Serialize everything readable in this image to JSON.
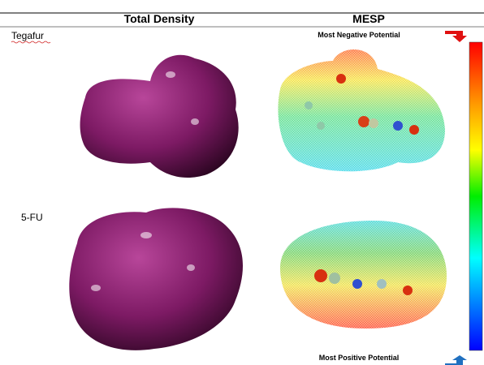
{
  "header": {
    "columns": [
      "Total Density",
      "MESP"
    ]
  },
  "rows": [
    {
      "label": "Tegafur"
    },
    {
      "label": "5-FU"
    }
  ],
  "scale": {
    "top": "Most Negative Potential",
    "bottom": "Most Positive Potential"
  }
}
